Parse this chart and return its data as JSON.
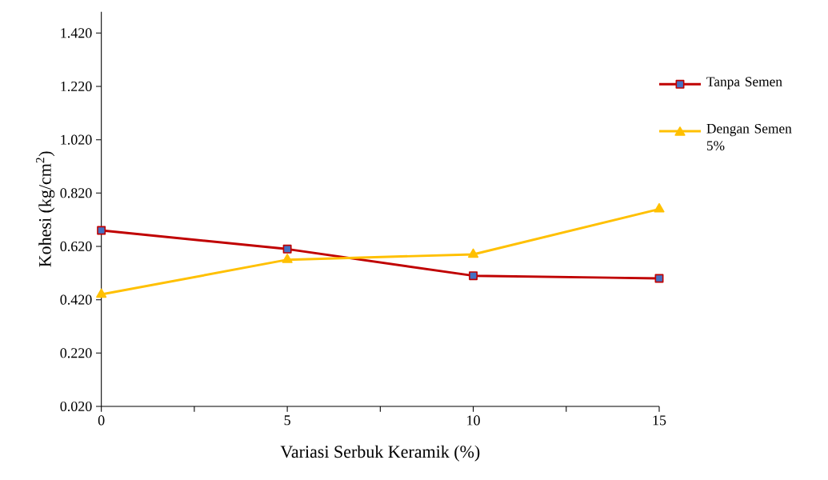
{
  "chart_data": {
    "type": "line",
    "xlabel": "Variasi Serbuk Keramik (%)",
    "ylabel": "Kohesi (kg/cm$^{2}$)",
    "x": [
      0,
      5,
      10,
      15
    ],
    "series": [
      {
        "name": "Tanpa Semen",
        "color": "#c00000",
        "marker": "square",
        "values": [
          0.68,
          0.61,
          0.51,
          0.5
        ]
      },
      {
        "name": "Dengan Semen 5%",
        "color": "#ffc000",
        "marker": "triangle",
        "values": [
          0.44,
          0.57,
          0.59,
          0.76
        ]
      }
    ],
    "xlim": [
      0,
      15
    ],
    "xticks": [
      0,
      {
        "value": 2.5,
        "label": null
      },
      5,
      {
        "value": 7.5,
        "label": null
      },
      10,
      {
        "value": 12.5,
        "label": null
      },
      15
    ],
    "ylim": [
      0.02,
      1.5
    ],
    "yticks": [
      {
        "value": 0.02,
        "label": "0.020"
      },
      {
        "value": 0.22,
        "label": "0.220"
      },
      {
        "value": 0.42,
        "label": "0.420"
      },
      {
        "value": 0.62,
        "label": "0.620"
      },
      {
        "value": 0.82,
        "label": "0.820"
      },
      {
        "value": 1.02,
        "label": "1.020"
      },
      {
        "value": 1.22,
        "label": "1.220"
      },
      {
        "value": 1.42,
        "label": "1.420"
      }
    ],
    "grid": false,
    "legend": "right",
    "line_style": "solid"
  }
}
